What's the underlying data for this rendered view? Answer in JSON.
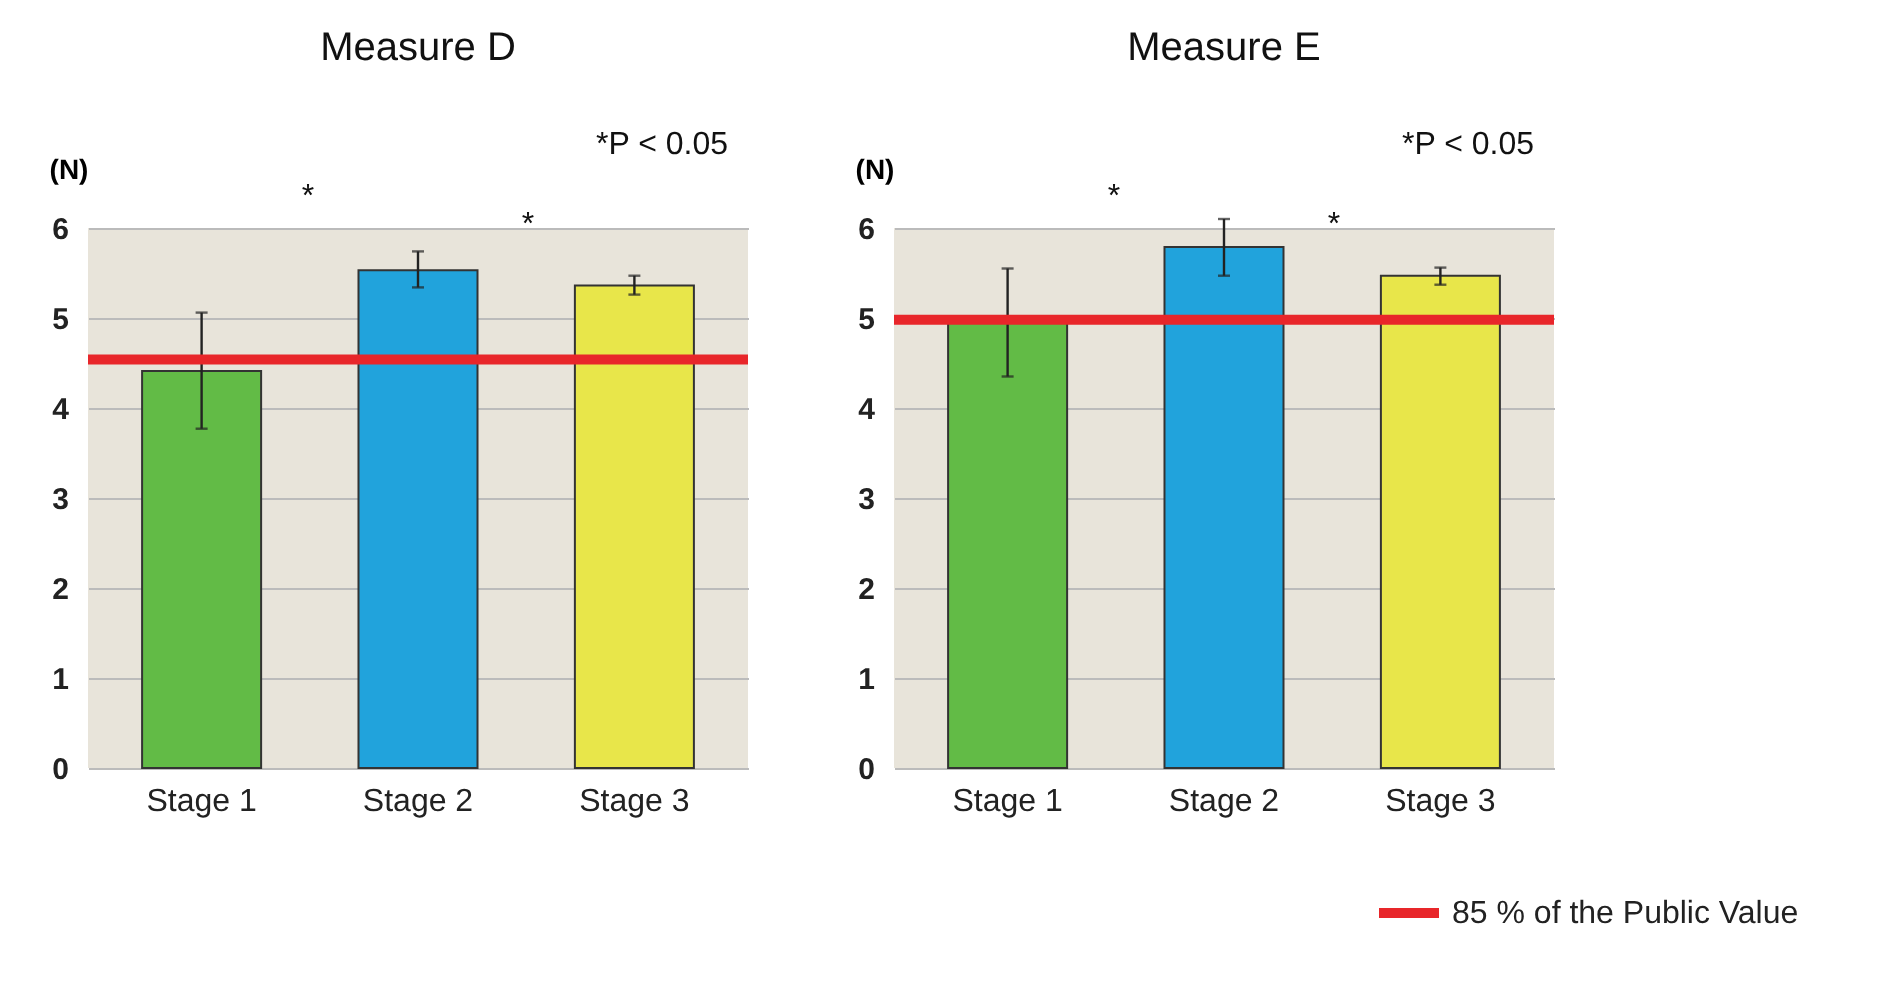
{
  "chart_data": [
    {
      "type": "bar",
      "title": "Measure D",
      "ylabel": "(N)",
      "categories": [
        "Stage 1",
        "Stage 2",
        "Stage 3"
      ],
      "values": [
        4.41,
        5.53,
        5.36
      ],
      "colors": [
        "#62bb46",
        "#21a3dc",
        "#e8e64a"
      ],
      "errors": [
        [
          3.77,
          5.06
        ],
        [
          5.34,
          5.74
        ],
        [
          5.26,
          5.47
        ]
      ],
      "ylim": [
        0,
        6
      ],
      "yticks": [
        0,
        1,
        2,
        3,
        4,
        5,
        6
      ],
      "grid": "y",
      "ref_lines": [
        {
          "axis": "y",
          "value": 4.54,
          "color": "#e8262a"
        }
      ],
      "annotations": [
        "*P < 0.05",
        "*",
        "*"
      ]
    },
    {
      "type": "bar",
      "title": "Measure E",
      "ylabel": "(N)",
      "categories": [
        "Stage 1",
        "Stage 2",
        "Stage 3"
      ],
      "values": [
        4.96,
        5.79,
        5.47
      ],
      "colors": [
        "#62bb46",
        "#21a3dc",
        "#e8e64a"
      ],
      "errors": [
        [
          4.35,
          5.55
        ],
        [
          5.47,
          6.1
        ],
        [
          5.37,
          5.56
        ]
      ],
      "ylim": [
        0,
        6
      ],
      "yticks": [
        0,
        1,
        2,
        3,
        4,
        5,
        6
      ],
      "grid": "y",
      "legend": "bottom right",
      "ref_lines": [
        {
          "axis": "y",
          "value": 4.98,
          "color": "#e8262a",
          "label": "85 % of the Public Value"
        }
      ],
      "annotations": [
        "*P < 0.05",
        "*",
        "*"
      ]
    }
  ]
}
